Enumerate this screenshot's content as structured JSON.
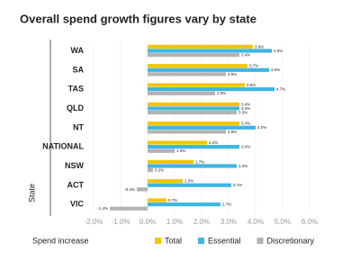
{
  "chart_data": {
    "type": "bar",
    "orientation": "horizontal",
    "title": "Overall spend growth figures vary by state",
    "x_label": "Spend increase",
    "y_label": "State",
    "categories": [
      "WA",
      "SA",
      "TAS",
      "QLD",
      "NT",
      "NATIONAL",
      "NSW",
      "ACT",
      "VIC"
    ],
    "series": [
      {
        "name": "Total",
        "color": "#f2c500",
        "values": [
          3.9,
          3.7,
          3.6,
          3.4,
          3.4,
          2.2,
          1.7,
          1.3,
          0.7
        ],
        "value_labels": [
          "3.9%",
          "3.7%",
          "3.6%",
          "3.4%",
          "3.4%",
          "2.2%",
          "1.7%",
          "1.3%",
          "0.7%"
        ]
      },
      {
        "name": "Essential",
        "color": "#3fb5e0",
        "values": [
          4.6,
          4.5,
          4.7,
          3.4,
          4.0,
          3.4,
          3.3,
          3.1,
          2.7
        ],
        "value_labels": [
          "4.6%",
          "4.5%",
          "4.7%",
          "3.4%",
          "4.0%",
          "3.4%",
          "3.3%",
          "3.1%",
          "2.7%"
        ]
      },
      {
        "name": "Discretionary",
        "color": "#b3b3b3",
        "values": [
          3.4,
          2.9,
          2.5,
          3.3,
          2.9,
          1.0,
          0.2,
          -0.4,
          -1.4
        ],
        "value_labels": [
          "3.4%",
          "2.9%",
          "2.5%",
          "3.3%",
          "2.9%",
          "1.0%",
          "0.2%",
          "-0.4%",
          "-1.4%"
        ]
      }
    ],
    "xlim": [
      -2.2,
      6.2
    ],
    "xticks": [
      {
        "value": -2,
        "label": "-2.0%"
      },
      {
        "value": -1,
        "label": "-1.0%"
      },
      {
        "value": 0,
        "label": "0.0%"
      },
      {
        "value": 1,
        "label": "1.0%"
      },
      {
        "value": 2,
        "label": "2.0%"
      },
      {
        "value": 3,
        "label": "3.0%"
      },
      {
        "value": 4,
        "label": "4.0%"
      },
      {
        "value": 5,
        "label": "5.0%"
      },
      {
        "value": 6,
        "label": "6.0%"
      }
    ],
    "grid": true,
    "legend": "bottom"
  }
}
